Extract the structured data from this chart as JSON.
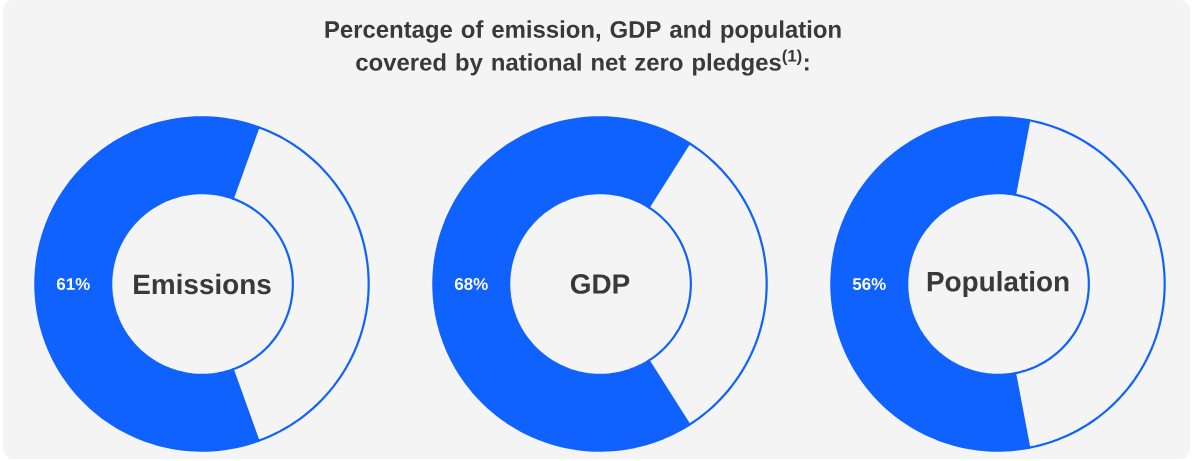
{
  "chart_data": [
    {
      "type": "donut",
      "annotations": [
        "Emissions"
      ],
      "categories": [
        null,
        null
      ],
      "values": [
        61,
        39
      ],
      "colors": [
        "#0f62fe",
        "#f4f4f4"
      ],
      "value_labels": [
        "61%",
        null
      ]
    },
    {
      "type": "donut",
      "title": "Percentage of emission, GDP and population covered by national net zero pledges$^{(1)}$:",
      "annotations": [
        "GDP"
      ],
      "categories": [
        null,
        null
      ],
      "values": [
        68,
        32
      ],
      "colors": [
        "#0f62fe",
        "#f4f4f4"
      ],
      "value_labels": [
        "68%",
        null
      ]
    },
    {
      "type": "donut",
      "annotations": [
        "Population"
      ],
      "categories": [
        null,
        null
      ],
      "values": [
        56,
        44
      ],
      "colors": [
        "#0f62fe",
        "#f4f4f4"
      ],
      "value_labels": [
        "56%",
        null
      ]
    }
  ]
}
